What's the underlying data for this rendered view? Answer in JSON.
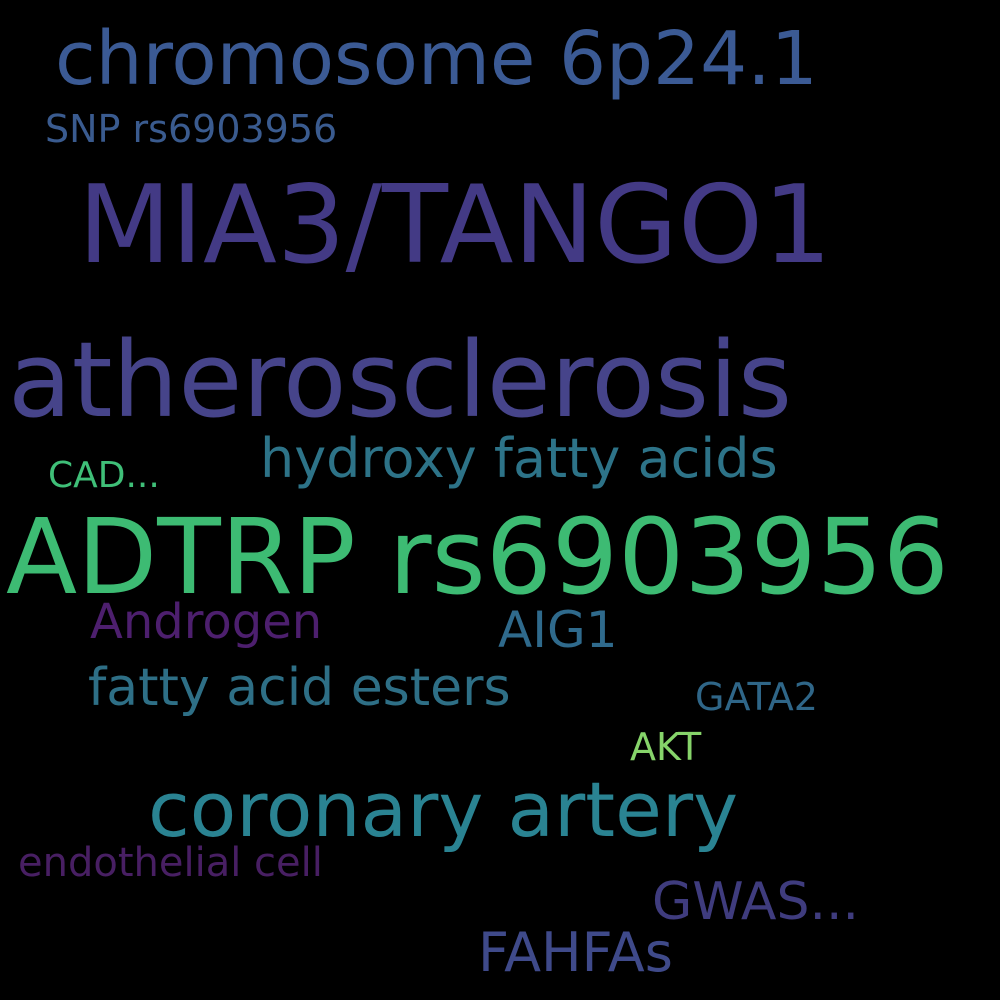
{
  "wordcloud": {
    "background": "#000000",
    "words": [
      {
        "text": "chromosome 6p24.1",
        "color": "#3b5a94"
      },
      {
        "text": "SNP rs6903956",
        "color": "#3a5b8f"
      },
      {
        "text": "MIA3/TANGO1",
        "color": "#433a85"
      },
      {
        "text": "atherosclerosis",
        "color": "#46448a"
      },
      {
        "text": "hydroxy fatty acids",
        "color": "#2d7388"
      },
      {
        "text": "CAD...",
        "color": "#3fbf78"
      },
      {
        "text": "ADTRP rs6903956",
        "color": "#3dbb73"
      },
      {
        "text": "Androgen",
        "color": "#4d1f6e"
      },
      {
        "text": "AIG1",
        "color": "#2f6a8c"
      },
      {
        "text": "fatty acid esters",
        "color": "#2e6f86"
      },
      {
        "text": "GATA2",
        "color": "#2f6688"
      },
      {
        "text": "AKT",
        "color": "#86d46a"
      },
      {
        "text": "coronary artery",
        "color": "#2a8392"
      },
      {
        "text": "endothelial cell",
        "color": "#481f63"
      },
      {
        "text": "GWAS...",
        "color": "#3f3c7e"
      },
      {
        "text": "FAHFAs",
        "color": "#3f4a8a"
      }
    ]
  }
}
